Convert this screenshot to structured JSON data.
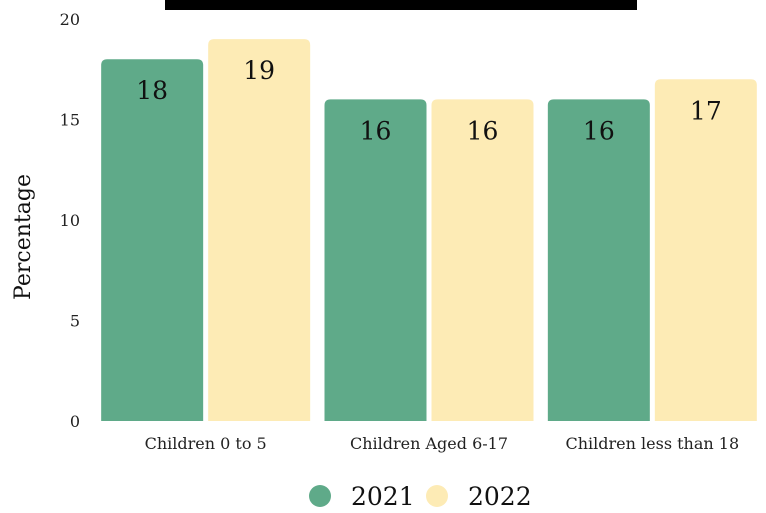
{
  "chart_data": {
    "type": "bar",
    "title": "",
    "xlabel": "",
    "ylabel": "Percentage",
    "ylim": [
      0,
      20
    ],
    "yticks": [
      0,
      5,
      10,
      15,
      20
    ],
    "grid": false,
    "legend_position": "bottom",
    "categories": [
      "Children 0 to 5",
      "Children Aged 6-17",
      "Children less than 18"
    ],
    "series": [
      {
        "name": "2021",
        "color": "#5faa89",
        "values": [
          18,
          16,
          16
        ]
      },
      {
        "name": "2022",
        "color": "#fdebb5",
        "values": [
          19,
          16,
          17
        ]
      }
    ]
  }
}
